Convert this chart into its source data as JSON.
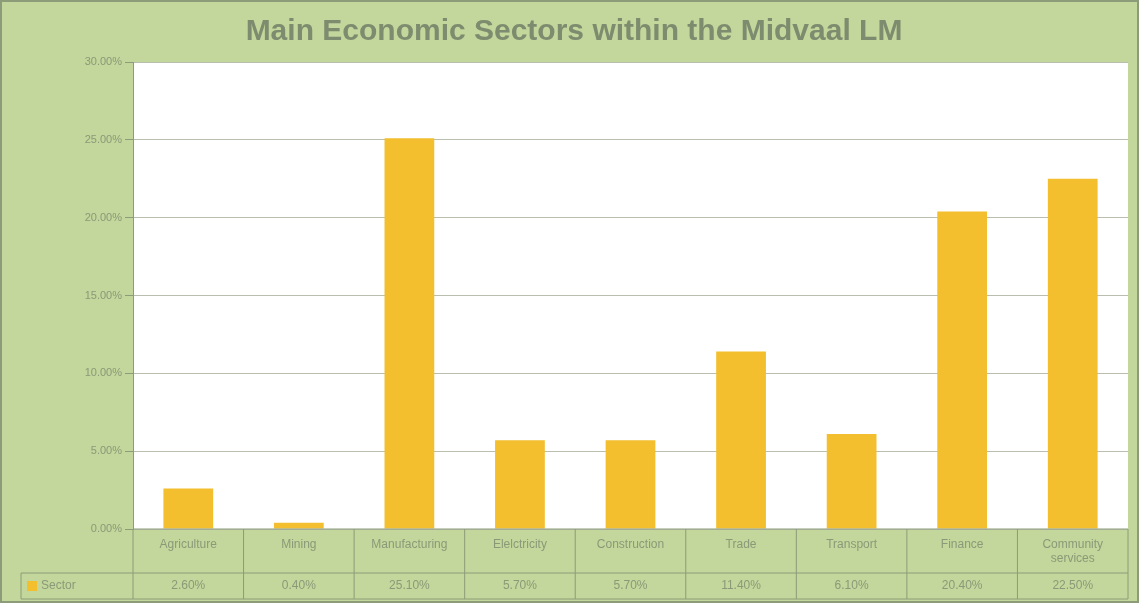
{
  "chart_data": {
    "type": "bar",
    "title": "Main Economic Sectors within the Midvaal LM",
    "categories": [
      "Agriculture",
      "Mining",
      "Manufacturing",
      "Elelctricity",
      "Construction",
      "Trade",
      "Transport",
      "Finance",
      "Community services"
    ],
    "series": [
      {
        "name": "Sector",
        "color": "#f3bf2e",
        "values": [
          2.6,
          0.4,
          25.1,
          5.7,
          5.7,
          11.4,
          6.1,
          20.4,
          22.5
        ],
        "value_labels": [
          "2.60%",
          "0.40%",
          "25.10%",
          "5.70%",
          "5.70%",
          "11.40%",
          "6.10%",
          "20.40%",
          "22.50%"
        ]
      }
    ],
    "ylim": [
      0,
      30
    ],
    "yticks": [
      {
        "value": 0,
        "label": "0.00%"
      },
      {
        "value": 5,
        "label": "5.00%"
      },
      {
        "value": 10,
        "label": "10.00%"
      },
      {
        "value": 15,
        "label": "15.00%"
      },
      {
        "value": 20,
        "label": "20.00%"
      },
      {
        "value": 25,
        "label": "25.00%"
      },
      {
        "value": 30,
        "label": "30.00%"
      }
    ],
    "grid": "y",
    "legend": "bottom left"
  }
}
